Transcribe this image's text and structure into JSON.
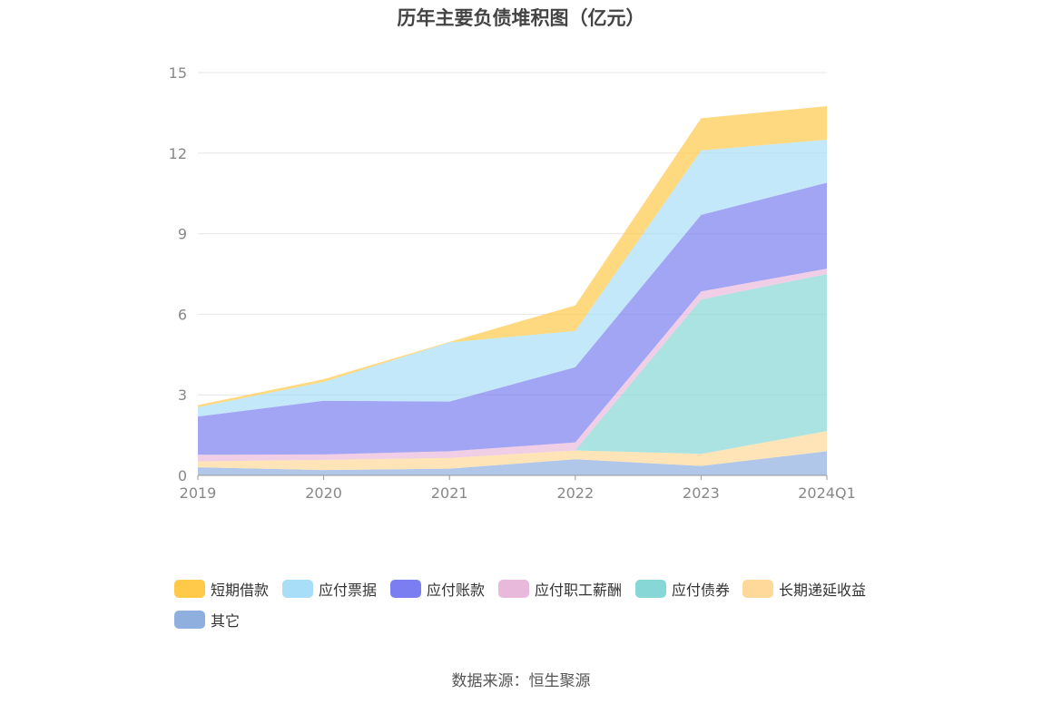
{
  "chart_data": {
    "type": "area",
    "stacked": true,
    "title": "历年主要负债堆积图（亿元）",
    "categories": [
      "2019",
      "2020",
      "2021",
      "2022",
      "2023",
      "2024Q1"
    ],
    "ylim": [
      0,
      15
    ],
    "yticks": [
      "0",
      "3",
      "6",
      "9",
      "12",
      "15"
    ],
    "grid": true,
    "legend_position": "bottom",
    "series": [
      {
        "name": "其它",
        "color": "#8fafdf",
        "values": [
          0.3,
          0.2,
          0.25,
          0.6,
          0.35,
          0.9
        ]
      },
      {
        "name": "长期递延收益",
        "color": "#ffd99a",
        "values": [
          0.22,
          0.38,
          0.4,
          0.33,
          0.45,
          0.75
        ]
      },
      {
        "name": "应付债券",
        "color": "#87d7d7",
        "values": [
          0,
          0,
          0,
          0,
          5.75,
          5.85
        ]
      },
      {
        "name": "应付职工薪酬",
        "color": "#e8b9db",
        "values": [
          0.25,
          0.2,
          0.25,
          0.3,
          0.3,
          0.2
        ]
      },
      {
        "name": "应付账款",
        "color": "#7b7ef0",
        "values": [
          1.42,
          2.0,
          1.85,
          2.8,
          2.85,
          3.2
        ]
      },
      {
        "name": "应付票据",
        "color": "#a8def8",
        "values": [
          0.35,
          0.7,
          2.2,
          1.35,
          2.4,
          1.6
        ]
      },
      {
        "name": "短期借款",
        "color": "#ffc94a",
        "values": [
          0.08,
          0.1,
          0.02,
          0.95,
          1.2,
          1.25
        ]
      }
    ]
  },
  "legend": [
    {
      "label": "短期借款",
      "color": "#ffc94a"
    },
    {
      "label": "应付票据",
      "color": "#a8def8"
    },
    {
      "label": "应付账款",
      "color": "#7b7ef0"
    },
    {
      "label": "应付职工薪酬",
      "color": "#e8b9db"
    },
    {
      "label": "应付债券",
      "color": "#87d7d7"
    },
    {
      "label": "长期递延收益",
      "color": "#ffd99a"
    },
    {
      "label": "其它",
      "color": "#8fafdf"
    }
  ],
  "source": "数据来源：恒生聚源"
}
